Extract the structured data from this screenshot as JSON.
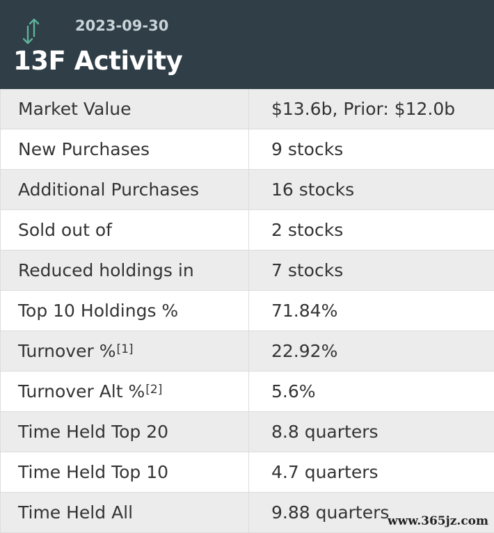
{
  "header": {
    "icon": "up-down-arrows-icon",
    "date": "2023-09-30",
    "title": "13F Activity",
    "colors": {
      "background": "#2f3e47",
      "icon": "#5fb39a"
    }
  },
  "rows": [
    {
      "label": "Market Value",
      "sup": "",
      "value": "$13.6b, Prior: $12.0b"
    },
    {
      "label": "New Purchases",
      "sup": "",
      "value": "9 stocks"
    },
    {
      "label": "Additional Purchases",
      "sup": "",
      "value": "16 stocks"
    },
    {
      "label": "Sold out of",
      "sup": "",
      "value": "2 stocks"
    },
    {
      "label": "Reduced holdings in",
      "sup": "",
      "value": "7 stocks"
    },
    {
      "label": "Top 10 Holdings %",
      "sup": "",
      "value": "71.84%"
    },
    {
      "label": "Turnover %",
      "sup": "[1]",
      "value": "22.92%"
    },
    {
      "label": "Turnover Alt %",
      "sup": "[2]",
      "value": "5.6%"
    },
    {
      "label": "Time Held Top 20",
      "sup": "",
      "value": "8.8 quarters"
    },
    {
      "label": "Time Held Top 10",
      "sup": "",
      "value": "4.7 quarters"
    },
    {
      "label": "Time Held All",
      "sup": "",
      "value": "9.88 quarters"
    }
  ],
  "watermark": "www.365jz.com"
}
